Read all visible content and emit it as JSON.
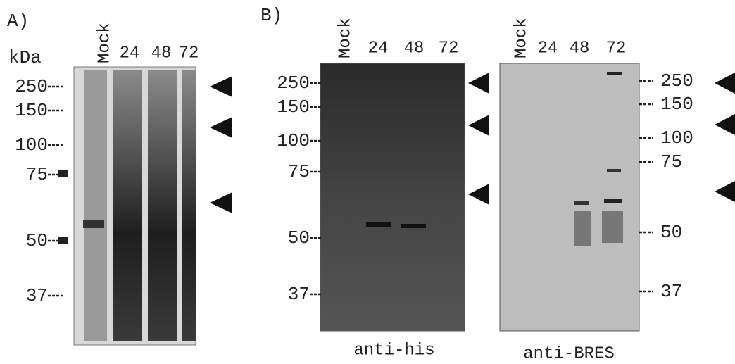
{
  "panel_a": {
    "label": "A)",
    "unit": "kDa",
    "lanes": [
      "Mock",
      "24",
      "48",
      "72"
    ],
    "markers": [
      "250",
      "150",
      "100",
      "75",
      "50",
      "37"
    ]
  },
  "panel_b": {
    "label": "B)",
    "blots": [
      {
        "lanes": [
          "Mock",
          "24",
          "48",
          "72"
        ],
        "markers": [
          "250",
          "150",
          "100",
          "75",
          "50",
          "37"
        ],
        "caption": "anti-his"
      },
      {
        "lanes": [
          "Mock",
          "24",
          "48",
          "72"
        ],
        "markers": [
          "250",
          "150",
          "100",
          "75",
          "50",
          "37"
        ],
        "caption": "anti-BRES"
      }
    ]
  }
}
